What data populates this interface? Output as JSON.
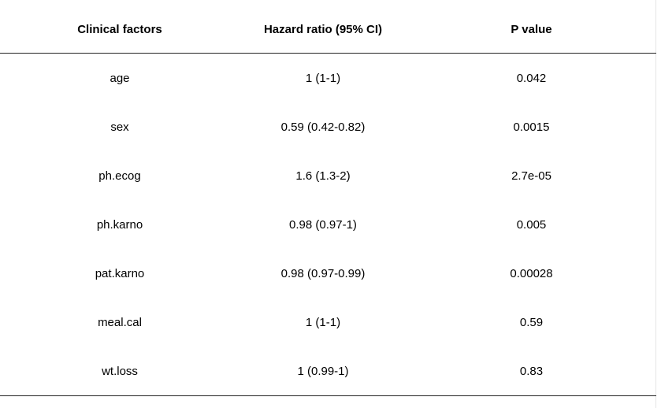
{
  "table": {
    "headers": [
      "Clinical factors",
      "Hazard ratio (95% CI)",
      "P value"
    ],
    "rows": [
      {
        "factor": "age",
        "hazard_ratio": "1 (1-1)",
        "p_value": "0.042"
      },
      {
        "factor": "sex",
        "hazard_ratio": "0.59 (0.42-0.82)",
        "p_value": "0.0015"
      },
      {
        "factor": "ph.ecog",
        "hazard_ratio": "1.6 (1.3-2)",
        "p_value": "2.7e-05"
      },
      {
        "factor": "ph.karno",
        "hazard_ratio": "0.98 (0.97-1)",
        "p_value": "0.005"
      },
      {
        "factor": "pat.karno",
        "hazard_ratio": "0.98 (0.97-0.99)",
        "p_value": "0.00028"
      },
      {
        "factor": "meal.cal",
        "hazard_ratio": "1 (1-1)",
        "p_value": "0.59"
      },
      {
        "factor": "wt.loss",
        "hazard_ratio": "1 (0.99-1)",
        "p_value": "0.83"
      }
    ]
  }
}
